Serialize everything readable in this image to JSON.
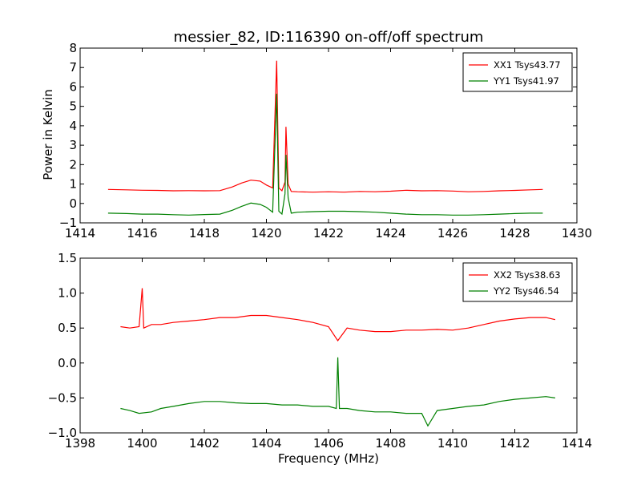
{
  "chart_data": [
    {
      "type": "line",
      "title": "messier_82, ID:116390 on-off/off spectrum",
      "xlabel": "",
      "ylabel": "Power in Kelvin",
      "xlim": [
        1414,
        1430
      ],
      "ylim": [
        -1,
        8
      ],
      "xticks": [
        1414,
        1416,
        1418,
        1420,
        1422,
        1424,
        1426,
        1428,
        1430
      ],
      "yticks": [
        -1,
        0,
        1,
        2,
        3,
        4,
        5,
        6,
        7,
        8
      ],
      "legend_position": "top-right",
      "grid": false,
      "series": [
        {
          "name": "XX1 Tsys43.77",
          "color": "#ff0000",
          "x": [
            1414.9,
            1415.5,
            1416,
            1416.5,
            1417,
            1417.5,
            1418,
            1418.5,
            1418.9,
            1419.2,
            1419.5,
            1419.8,
            1420.0,
            1420.2,
            1420.33,
            1420.4,
            1420.5,
            1420.6,
            1420.63,
            1420.7,
            1420.8,
            1421,
            1421.5,
            1422,
            1422.5,
            1423,
            1423.5,
            1424,
            1424.5,
            1425,
            1425.5,
            1426,
            1426.5,
            1427,
            1427.5,
            1428,
            1428.5,
            1428.9
          ],
          "y": [
            0.72,
            0.7,
            0.68,
            0.67,
            0.65,
            0.66,
            0.65,
            0.66,
            0.85,
            1.05,
            1.2,
            1.15,
            0.95,
            0.8,
            7.35,
            0.8,
            0.65,
            1.1,
            3.95,
            1.0,
            0.62,
            0.6,
            0.58,
            0.6,
            0.58,
            0.62,
            0.6,
            0.63,
            0.68,
            0.65,
            0.66,
            0.64,
            0.6,
            0.62,
            0.65,
            0.67,
            0.7,
            0.72
          ]
        },
        {
          "name": "YY1 Tsys41.97",
          "color": "#008000",
          "x": [
            1414.9,
            1415.5,
            1416,
            1416.5,
            1417,
            1417.5,
            1418,
            1418.5,
            1418.9,
            1419.2,
            1419.5,
            1419.8,
            1420.0,
            1420.2,
            1420.33,
            1420.4,
            1420.5,
            1420.6,
            1420.63,
            1420.7,
            1420.8,
            1421,
            1421.5,
            1422,
            1422.5,
            1423,
            1423.5,
            1424,
            1424.5,
            1425,
            1425.5,
            1426,
            1426.5,
            1427,
            1427.5,
            1428,
            1428.5,
            1428.9
          ],
          "y": [
            -0.5,
            -0.52,
            -0.55,
            -0.55,
            -0.58,
            -0.6,
            -0.57,
            -0.55,
            -0.35,
            -0.15,
            0.02,
            -0.05,
            -0.2,
            -0.45,
            5.65,
            -0.4,
            -0.55,
            0.5,
            2.5,
            0.3,
            -0.5,
            -0.45,
            -0.42,
            -0.4,
            -0.4,
            -0.42,
            -0.45,
            -0.5,
            -0.55,
            -0.58,
            -0.58,
            -0.6,
            -0.6,
            -0.58,
            -0.55,
            -0.52,
            -0.5,
            -0.5
          ]
        }
      ]
    },
    {
      "type": "line",
      "title": "",
      "xlabel": "Frequency (MHz)",
      "ylabel": "",
      "xlim": [
        1398,
        1414
      ],
      "ylim": [
        -1.0,
        1.5
      ],
      "xticks": [
        1398,
        1400,
        1402,
        1404,
        1406,
        1408,
        1410,
        1412,
        1414
      ],
      "yticks": [
        -1.0,
        -0.5,
        0.0,
        0.5,
        1.0,
        1.5
      ],
      "legend_position": "top-right",
      "grid": false,
      "series": [
        {
          "name": "XX2 Tsys38.63",
          "color": "#ff0000",
          "x": [
            1399.3,
            1399.6,
            1399.9,
            1400.0,
            1400.05,
            1400.3,
            1400.6,
            1401,
            1401.5,
            1402,
            1402.5,
            1403,
            1403.5,
            1404,
            1404.5,
            1405,
            1405.5,
            1406,
            1406.3,
            1406.6,
            1407,
            1407.5,
            1408,
            1408.5,
            1409,
            1409.5,
            1410,
            1410.5,
            1411,
            1411.5,
            1412,
            1412.5,
            1413,
            1413.3
          ],
          "y": [
            0.52,
            0.5,
            0.52,
            1.07,
            0.5,
            0.55,
            0.55,
            0.58,
            0.6,
            0.62,
            0.65,
            0.65,
            0.68,
            0.68,
            0.65,
            0.62,
            0.58,
            0.52,
            0.32,
            0.5,
            0.47,
            0.45,
            0.45,
            0.47,
            0.47,
            0.48,
            0.47,
            0.5,
            0.55,
            0.6,
            0.63,
            0.65,
            0.65,
            0.62
          ]
        },
        {
          "name": "YY2 Tsys46.54",
          "color": "#008000",
          "x": [
            1399.3,
            1399.6,
            1399.9,
            1400.3,
            1400.6,
            1401,
            1401.5,
            1402,
            1402.5,
            1403,
            1403.5,
            1404,
            1404.5,
            1405,
            1405.5,
            1406,
            1406.25,
            1406.3,
            1406.35,
            1406.6,
            1407,
            1407.5,
            1408,
            1408.5,
            1409,
            1409.2,
            1409.5,
            1410,
            1410.5,
            1411,
            1411.5,
            1412,
            1412.5,
            1413,
            1413.3
          ],
          "y": [
            -0.65,
            -0.68,
            -0.72,
            -0.7,
            -0.65,
            -0.62,
            -0.58,
            -0.55,
            -0.55,
            -0.57,
            -0.58,
            -0.58,
            -0.6,
            -0.6,
            -0.62,
            -0.62,
            -0.65,
            0.08,
            -0.65,
            -0.65,
            -0.68,
            -0.7,
            -0.7,
            -0.72,
            -0.72,
            -0.9,
            -0.68,
            -0.65,
            -0.62,
            -0.6,
            -0.55,
            -0.52,
            -0.5,
            -0.48,
            -0.5
          ]
        }
      ]
    }
  ]
}
